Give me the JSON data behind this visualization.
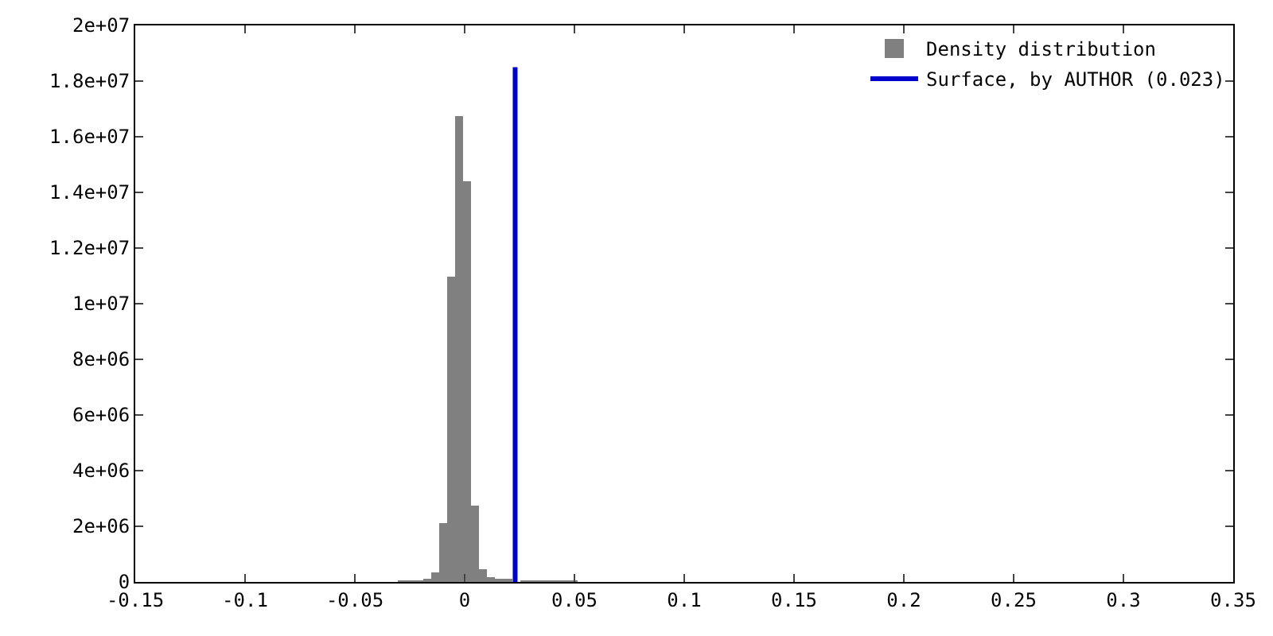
{
  "chart_data": {
    "type": "histogram",
    "bins": [
      -0.0303,
      -0.0266,
      -0.0229,
      -0.0192,
      -0.0155,
      -0.0118,
      -0.0081,
      -0.0044,
      -0.0007,
      0.003,
      0.0067,
      0.0104,
      0.0141,
      0.0178,
      0.0215,
      0.0252,
      0.0289,
      0.0326,
      0.0363,
      0.04,
      0.0437,
      0.0474,
      0.0511
    ],
    "series": [
      {
        "name": "Density distribution",
        "color": "#808080",
        "values": [
          20000,
          30000,
          40000,
          60000,
          340000,
          2100000,
          11000000,
          16760000,
          14400000,
          2760000,
          470000,
          190000,
          130000,
          60000,
          null,
          50000,
          50000,
          50000,
          40000,
          40000,
          40000,
          30000
        ]
      },
      {
        "name": "Surface, by AUTHOR (0.023)",
        "type": "line",
        "color": "#0000cc",
        "x": [
          0.023,
          0.023
        ],
        "values": [
          0,
          18500000
        ]
      }
    ],
    "xlim": [
      -0.15,
      0.35
    ],
    "xticks": [
      -0.15,
      -0.1,
      -0.05,
      0,
      0.05,
      0.1,
      0.15,
      0.2,
      0.25,
      0.3,
      0.35
    ],
    "ylim": [
      0,
      20000000
    ],
    "yticks": [
      0,
      {
        "value": 2000000,
        "label": "2e+06"
      },
      {
        "value": 4000000,
        "label": "4e+06"
      },
      {
        "value": 6000000,
        "label": "6e+06"
      },
      {
        "value": 8000000,
        "label": "8e+06"
      },
      {
        "value": 10000000,
        "label": "1e+07"
      },
      {
        "value": 12000000,
        "label": "1.2e+07"
      },
      {
        "value": 14000000,
        "label": "1.4e+07"
      },
      {
        "value": 16000000,
        "label": "1.6e+07"
      },
      {
        "value": 18000000,
        "label": "1.8e+07"
      },
      {
        "value": 20000000,
        "label": "2e+07"
      }
    ],
    "grid": false,
    "legend": "top right"
  }
}
